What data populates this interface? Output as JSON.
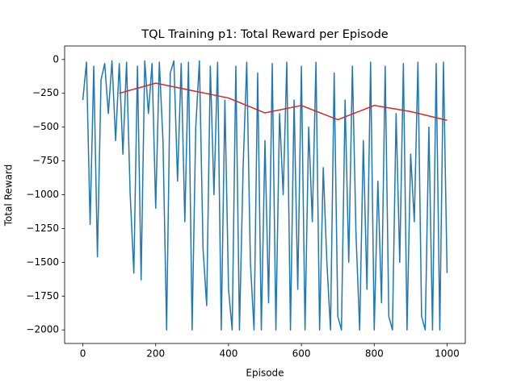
{
  "chart_data": {
    "type": "line",
    "title": "TQL Training p1: Total Reward per Episode",
    "x_label": "Episode",
    "y_label": "Total Reward",
    "xlim": [
      -50,
      1050
    ],
    "ylim": [
      -2100,
      100
    ],
    "xticks": [
      0,
      200,
      400,
      600,
      800,
      1000
    ],
    "yticks": [
      0,
      {
        "value": -250,
        "label": "−250"
      },
      {
        "value": -500,
        "label": "−500"
      },
      {
        "value": -750,
        "label": "−750"
      },
      {
        "value": -1000,
        "label": "−1000"
      },
      {
        "value": -1250,
        "label": "−1250"
      },
      {
        "value": -1500,
        "label": "−1500"
      },
      {
        "value": -1750,
        "label": "−1750"
      },
      {
        "value": -2000,
        "label": "−2000"
      }
    ],
    "grid": false,
    "series": [
      {
        "color": "#1f77b4",
        "x": [
          0,
          10,
          20,
          30,
          40,
          50,
          60,
          70,
          80,
          90,
          100,
          110,
          120,
          130,
          140,
          150,
          160,
          170,
          180,
          190,
          200,
          210,
          220,
          230,
          240,
          250,
          260,
          270,
          280,
          290,
          300,
          310,
          320,
          330,
          340,
          350,
          360,
          370,
          380,
          390,
          400,
          410,
          420,
          430,
          440,
          450,
          460,
          470,
          480,
          490,
          500,
          510,
          520,
          530,
          540,
          550,
          560,
          570,
          580,
          590,
          600,
          610,
          620,
          630,
          640,
          650,
          660,
          670,
          680,
          690,
          700,
          710,
          720,
          730,
          740,
          750,
          760,
          770,
          780,
          790,
          800,
          810,
          820,
          830,
          840,
          850,
          860,
          870,
          880,
          890,
          900,
          910,
          920,
          930,
          940,
          950,
          960,
          970,
          980,
          990,
          1000
        ],
        "values": [
          -300,
          -20,
          -1220,
          -50,
          -1460,
          -150,
          -30,
          -400,
          -10,
          -600,
          -30,
          -700,
          -20,
          -1000,
          -1580,
          -50,
          -1630,
          -10,
          -400,
          -30,
          -1100,
          -20,
          -600,
          -2000,
          -100,
          -10,
          -900,
          -30,
          -1200,
          -20,
          -2000,
          -500,
          -10,
          -1400,
          -1820,
          -50,
          -1000,
          -20,
          -2000,
          -300,
          -1700,
          -2000,
          -50,
          -2000,
          -800,
          -20,
          -1500,
          -2000,
          -100,
          -2000,
          -600,
          -1800,
          -30,
          -2000,
          -400,
          -1000,
          -20,
          -2000,
          -300,
          -1700,
          -50,
          -2000,
          -500,
          -1200,
          -20,
          -2000,
          -800,
          -1500,
          -2000,
          -100,
          -1900,
          -2000,
          -300,
          -1500,
          -50,
          -1300,
          -2000,
          -600,
          -1700,
          -20,
          -2000,
          -900,
          -1800,
          -50,
          -1900,
          -2000,
          -400,
          -1500,
          -30,
          -2000,
          -700,
          -1200,
          -20,
          -1900,
          -2000,
          -500,
          -2000,
          -30,
          -2000,
          -20,
          -1580
        ]
      },
      {
        "color": "#d62728",
        "x": [
          100,
          200,
          300,
          400,
          500,
          600,
          700,
          800,
          900,
          1000
        ],
        "values": [
          -250,
          -175,
          -230,
          -285,
          -395,
          -340,
          -445,
          -340,
          -385,
          -450
        ]
      }
    ]
  }
}
